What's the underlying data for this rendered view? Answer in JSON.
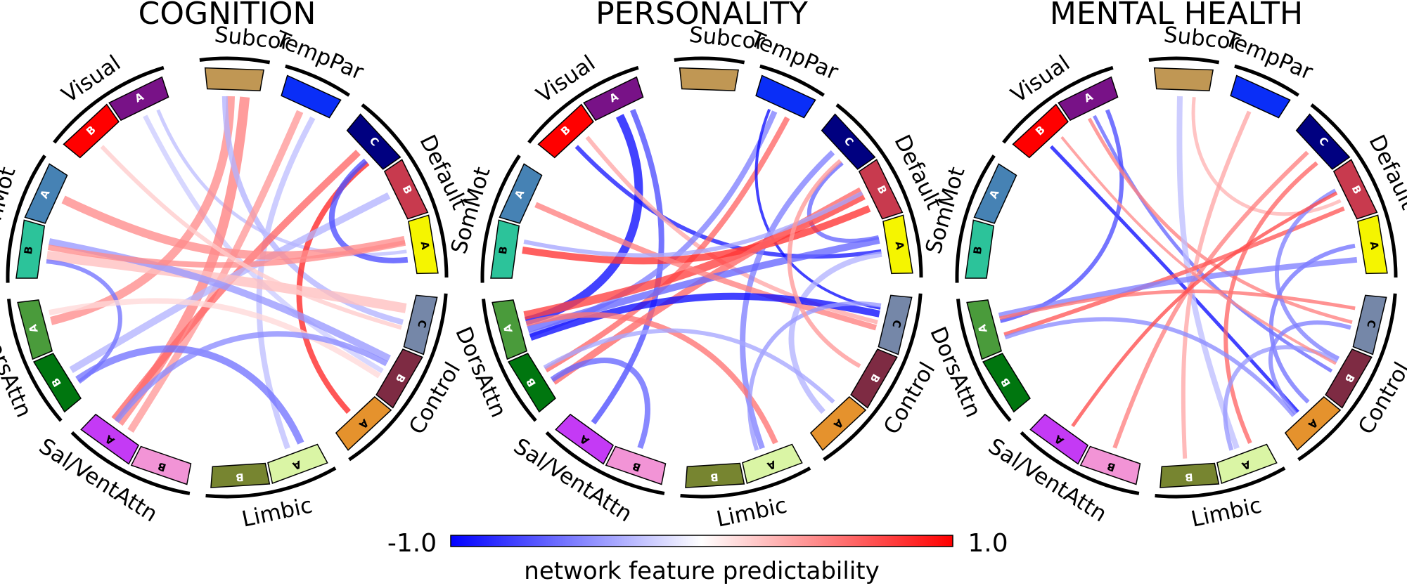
{
  "panels": [
    {
      "title": "COGNITION",
      "chords": [
        {
          "a": "Visual-A",
          "b": "Control-B",
          "v": -0.2,
          "w": 7
        },
        {
          "a": "Visual-A",
          "b": "Default-A",
          "v": -0.25,
          "w": 5
        },
        {
          "a": "Subcor",
          "b": "DorsAttn-A",
          "v": 0.45,
          "w": 12
        },
        {
          "a": "Subcor",
          "b": "Sal/VentAttn-A",
          "v": 0.5,
          "w": 14
        },
        {
          "a": "Subcor",
          "b": "Control-C",
          "v": -0.3,
          "w": 8
        },
        {
          "a": "TempPar",
          "b": "Sal/VentAttn-A",
          "v": 0.4,
          "w": 10
        },
        {
          "a": "TempPar",
          "b": "Limbic-A",
          "v": -0.25,
          "w": 8
        },
        {
          "a": "Default-C",
          "b": "Sal/VentAttn-A",
          "v": 0.6,
          "w": 10
        },
        {
          "a": "Default-C",
          "b": "Control-A",
          "v": 0.85,
          "w": 8
        },
        {
          "a": "Default-B",
          "b": "DorsAttn-B",
          "v": -0.3,
          "w": 10
        },
        {
          "a": "Default-A",
          "b": "Default-C",
          "v": -0.7,
          "w": 8
        },
        {
          "a": "Default-A",
          "b": "SomMot-A",
          "v": 0.45,
          "w": 12
        },
        {
          "a": "SomMot-B",
          "b": "Control-C",
          "v": 0.25,
          "w": 14
        },
        {
          "a": "SomMot-B",
          "b": "Control-B",
          "v": -0.4,
          "w": 10
        },
        {
          "a": "SomMot-B",
          "b": "DorsAttn-B",
          "v": -0.55,
          "w": 6
        },
        {
          "a": "SomMot-B",
          "b": "Default-A",
          "v": 0.45,
          "w": 8
        },
        {
          "a": "DorsAttn-A",
          "b": "Control-B",
          "v": 0.15,
          "w": 8
        },
        {
          "a": "DorsAttn-B",
          "b": "Limbic-A",
          "v": -0.55,
          "w": 10
        },
        {
          "a": "Sal/VentAttn-A",
          "b": "Control-B",
          "v": -0.45,
          "w": 8
        },
        {
          "a": "Visual-B",
          "b": "Control-C",
          "v": 0.2,
          "w": 6
        }
      ]
    },
    {
      "title": "PERSONALITY",
      "chords": [
        {
          "a": "Visual-A",
          "b": "DorsAttn-A",
          "v": -0.95,
          "w": 12
        },
        {
          "a": "Visual-A",
          "b": "Sal/VentAttn-A",
          "v": -0.7,
          "w": 8
        },
        {
          "a": "Visual-B",
          "b": "Default-A",
          "v": -0.9,
          "w": 6
        },
        {
          "a": "Visual-B",
          "b": "Control-C",
          "v": 0.35,
          "w": 6
        },
        {
          "a": "TempPar",
          "b": "DorsAttn-A",
          "v": -0.5,
          "w": 8
        },
        {
          "a": "TempPar",
          "b": "DorsAttn-B",
          "v": 0.6,
          "w": 8
        },
        {
          "a": "TempPar",
          "b": "Control-C",
          "v": -0.95,
          "w": 4
        },
        {
          "a": "Default-C",
          "b": "Limbic-A",
          "v": -0.5,
          "w": 8
        },
        {
          "a": "Default-C",
          "b": "Default-A",
          "v": -0.6,
          "w": 6
        },
        {
          "a": "Default-B",
          "b": "DorsAttn-A",
          "v": 0.75,
          "w": 12
        },
        {
          "a": "Default-B",
          "b": "SomMot-B",
          "v": 0.8,
          "w": 10
        },
        {
          "a": "Default-B",
          "b": "DorsAttn-B",
          "v": 0.6,
          "w": 10
        },
        {
          "a": "Default-A",
          "b": "DorsAttn-A",
          "v": -0.6,
          "w": 10
        },
        {
          "a": "Default-A",
          "b": "Control-A",
          "v": -0.3,
          "w": 8
        },
        {
          "a": "SomMot-A",
          "b": "Control-C",
          "v": 0.5,
          "w": 8
        },
        {
          "a": "SomMot-B",
          "b": "Default-B",
          "v": -0.35,
          "w": 6
        },
        {
          "a": "DorsAttn-A",
          "b": "Control-C",
          "v": -0.95,
          "w": 10
        },
        {
          "a": "DorsAttn-B",
          "b": "Sal/VentAttn-B",
          "v": -0.6,
          "w": 8
        },
        {
          "a": "DorsAttn-A",
          "b": "Limbic-A",
          "v": 0.55,
          "w": 8
        },
        {
          "a": "Control-C",
          "b": "Limbic-A",
          "v": -0.4,
          "w": 6
        },
        {
          "a": "Control-B",
          "b": "Default-C",
          "v": 0.4,
          "w": 6
        },
        {
          "a": "DorsAttn-B",
          "b": "Control-A",
          "v": -0.35,
          "w": 6
        }
      ]
    },
    {
      "title": "MENTAL HEALTH",
      "chords": [
        {
          "a": "Visual-B",
          "b": "Control-A",
          "v": -0.95,
          "w": 5
        },
        {
          "a": "Visual-A",
          "b": "Control-B",
          "v": -0.6,
          "w": 5
        },
        {
          "a": "Visual-A",
          "b": "DorsAttn-A",
          "v": -0.7,
          "w": 6
        },
        {
          "a": "Visual-A",
          "b": "Control-C",
          "v": 0.5,
          "w": 5
        },
        {
          "a": "Subcor",
          "b": "Limbic-A",
          "v": -0.25,
          "w": 8
        },
        {
          "a": "Subcor",
          "b": "Default-B",
          "v": 0.3,
          "w": 5
        },
        {
          "a": "TempPar",
          "b": "Limbic-B",
          "v": 0.35,
          "w": 6
        },
        {
          "a": "Default-C",
          "b": "Sal/VentAttn-B",
          "v": 0.5,
          "w": 6
        },
        {
          "a": "Default-C",
          "b": "Limbic-A",
          "v": 0.6,
          "w": 6
        },
        {
          "a": "Default-B",
          "b": "DorsAttn-A",
          "v": 0.65,
          "w": 6
        },
        {
          "a": "Default-A",
          "b": "Control-A",
          "v": -0.55,
          "w": 6
        },
        {
          "a": "Default-A",
          "b": "DorsAttn-A",
          "v": -0.5,
          "w": 8
        },
        {
          "a": "Default-B",
          "b": "Control-B",
          "v": -0.5,
          "w": 6
        },
        {
          "a": "DorsAttn-A",
          "b": "Control-C",
          "v": 0.55,
          "w": 5
        },
        {
          "a": "DorsAttn-A",
          "b": "Control-A",
          "v": -0.45,
          "w": 6
        },
        {
          "a": "Control-B",
          "b": "Limbic-A",
          "v": -0.4,
          "w": 6
        },
        {
          "a": "Sal/VentAttn-A",
          "b": "Default-B",
          "v": 0.7,
          "w": 5
        },
        {
          "a": "Visual-B",
          "b": "Control-B",
          "v": 0.45,
          "w": 4
        },
        {
          "a": "Control-A",
          "b": "Control-C",
          "v": -0.5,
          "w": 6
        }
      ]
    }
  ],
  "networks": [
    {
      "name": "Subcor",
      "subs": [
        {
          "id": "Subcor",
          "label": "",
          "color": "#C09754"
        }
      ]
    },
    {
      "name": "TempPar",
      "subs": [
        {
          "id": "TempPar",
          "label": "",
          "color": "#0A2EF7"
        }
      ]
    },
    {
      "name": "Default",
      "subs": [
        {
          "id": "Default-C",
          "label": "C",
          "color": "#000080"
        },
        {
          "id": "Default-B",
          "label": "B",
          "color": "#C83A4E"
        },
        {
          "id": "Default-A",
          "label": "A",
          "color": "#F5F500"
        }
      ]
    },
    {
      "name": "Control",
      "subs": [
        {
          "id": "Control-C",
          "label": "C",
          "color": "#7587A8"
        },
        {
          "id": "Control-B",
          "label": "B",
          "color": "#7E2B43"
        },
        {
          "id": "Control-A",
          "label": "A",
          "color": "#E5922D"
        }
      ]
    },
    {
      "name": "Limbic",
      "subs": [
        {
          "id": "Limbic-A",
          "label": "A",
          "color": "#DAF5A5"
        },
        {
          "id": "Limbic-B",
          "label": "B",
          "color": "#778530"
        }
      ]
    },
    {
      "name": "Sal/VentAttn",
      "subs": [
        {
          "id": "Sal/VentAttn-B",
          "label": "B",
          "color": "#F294D6"
        },
        {
          "id": "Sal/VentAttn-A",
          "label": "A",
          "color": "#C43AF5"
        }
      ]
    },
    {
      "name": "DorsAttn",
      "subs": [
        {
          "id": "DorsAttn-B",
          "label": "B",
          "color": "#00760F"
        },
        {
          "id": "DorsAttn-A",
          "label": "A",
          "color": "#4A9B3B"
        }
      ]
    },
    {
      "name": "SomMot",
      "subs": [
        {
          "id": "SomMot-B",
          "label": "B",
          "color": "#2CC39A"
        },
        {
          "id": "SomMot-A",
          "label": "A",
          "color": "#4682B4"
        }
      ]
    },
    {
      "name": "Visual",
      "subs": [
        {
          "id": "Visual-B",
          "label": "B",
          "color": "#FF0000"
        },
        {
          "id": "Visual-A",
          "label": "A",
          "color": "#781287"
        }
      ]
    }
  ],
  "colorbar": {
    "min_label": "-1.0",
    "max_label": "1.0",
    "label": "network feature predictability",
    "min_color": "#0000FF",
    "mid_color": "#FFFFFF",
    "max_color": "#FF0000"
  }
}
